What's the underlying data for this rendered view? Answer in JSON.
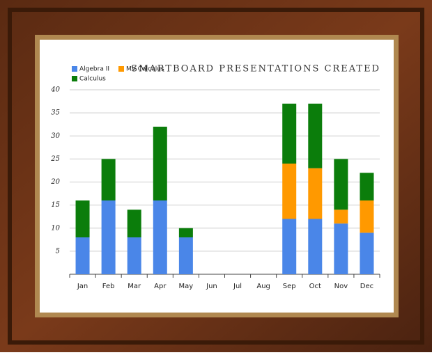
{
  "chart_data": {
    "type": "stacked-bar",
    "title": "SMARTBOARD PRESENTATIONS CREATED",
    "categories": [
      "Jan",
      "Feb",
      "Mar",
      "Apr",
      "May",
      "Jun",
      "Jul",
      "Aug",
      "Sep",
      "Oct",
      "Nov",
      "Dec"
    ],
    "series": [
      {
        "name": "Algebra II",
        "color": "#4a86e8",
        "values": [
          8,
          16,
          8,
          16,
          8,
          0,
          0,
          0,
          12,
          12,
          11,
          9
        ]
      },
      {
        "name": "MV Calculus",
        "color": "#ff9900",
        "values": [
          0,
          0,
          0,
          0,
          0,
          0,
          0,
          0,
          12,
          11,
          3,
          7
        ]
      },
      {
        "name": "Calculus",
        "color": "#0b7d0b",
        "values": [
          8,
          9,
          6,
          16,
          2,
          0,
          0,
          0,
          13,
          14,
          11,
          6
        ]
      }
    ],
    "ylim": [
      0,
      40
    ],
    "yticks": [
      5,
      10,
      15,
      20,
      25,
      30,
      35,
      40
    ],
    "grid": true
  }
}
